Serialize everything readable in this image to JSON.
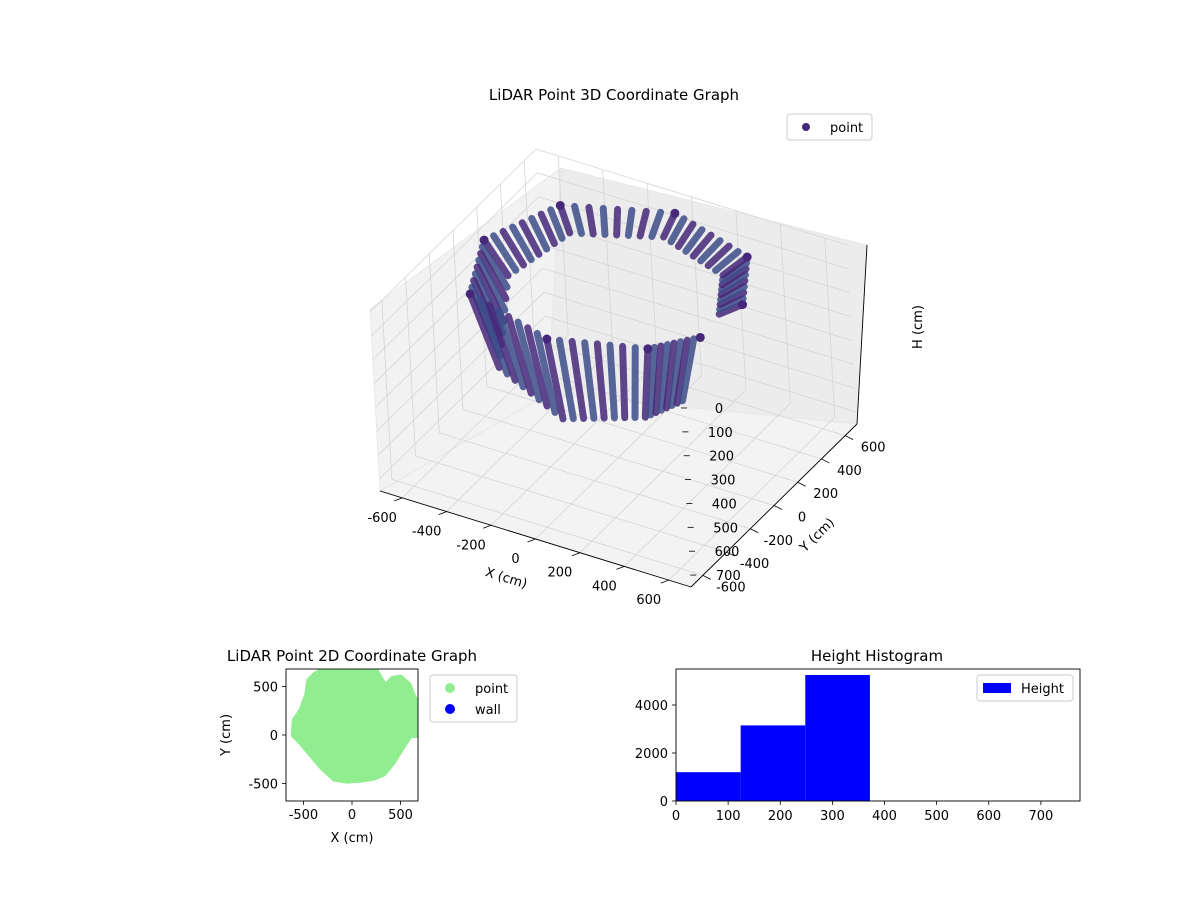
{
  "chart_data": [
    {
      "type": "scatter3d",
      "title": "LiDAR Point 3D Coordinate Graph",
      "xlabel": "X (cm)",
      "ylabel": "Y (cm)",
      "zlabel": "H (cm)",
      "xlim": [
        -700,
        700
      ],
      "ylim": [
        -700,
        700
      ],
      "zlim": [
        0,
        750
      ],
      "z_inverted": true,
      "xticks": [
        -600,
        -400,
        -200,
        0,
        200,
        400,
        600
      ],
      "yticks": [
        -600,
        -400,
        -200,
        0,
        200,
        400,
        600
      ],
      "zticks": [
        0,
        100,
        200,
        300,
        400,
        500,
        600,
        700
      ],
      "legend": {
        "position": "top-right",
        "entries": [
          {
            "label": "point",
            "color": "#46287a"
          }
        ]
      },
      "colormap": [
        "#46287a",
        "#3d4d8a"
      ],
      "grid": true,
      "series": [
        {
          "name": "point",
          "shape": "ring-sweep",
          "ring_radius_range": [
            380,
            560
          ],
          "angle_range_deg": [
            0,
            360
          ],
          "height_range": [
            0,
            420
          ],
          "points": [
            {
              "x": 550,
              "y": 100,
              "h": 60
            },
            {
              "x": 400,
              "y": 420,
              "h": 60
            },
            {
              "x": 0,
              "y": 560,
              "h": 50
            },
            {
              "x": -420,
              "y": 380,
              "h": 60
            },
            {
              "x": -560,
              "y": 0,
              "h": 120
            },
            {
              "x": -420,
              "y": -380,
              "h": 320
            },
            {
              "x": 0,
              "y": -520,
              "h": 380
            },
            {
              "x": 380,
              "y": -380,
              "h": 340
            },
            {
              "x": 520,
              "y": -200,
              "h": 300
            }
          ]
        }
      ]
    },
    {
      "type": "scatter",
      "title": "LiDAR Point 2D Coordinate Graph",
      "xlabel": "X (cm)",
      "ylabel": "Y (cm)",
      "xlim": [
        -680,
        680
      ],
      "ylim": [
        -680,
        680
      ],
      "xticks": [
        -500,
        0,
        500
      ],
      "yticks": [
        -500,
        0,
        500
      ],
      "legend": {
        "position": "right",
        "entries": [
          {
            "label": "point",
            "color": "#90ee90"
          },
          {
            "label": "wall",
            "color": "#0000ff"
          }
        ]
      },
      "series": [
        {
          "name": "point",
          "color": "#90ee90",
          "outline": [
            [
              -600,
              0
            ],
            [
              -590,
              150
            ],
            [
              -520,
              250
            ],
            [
              -460,
              420
            ],
            [
              -440,
              560
            ],
            [
              -380,
              620
            ],
            [
              -280,
              680
            ],
            [
              -150,
              680
            ],
            [
              0,
              680
            ],
            [
              150,
              680
            ],
            [
              250,
              650
            ],
            [
              300,
              560
            ],
            [
              350,
              500
            ],
            [
              420,
              580
            ],
            [
              500,
              590
            ],
            [
              580,
              520
            ],
            [
              620,
              420
            ],
            [
              680,
              300
            ],
            [
              680,
              0
            ],
            [
              600,
              0
            ],
            [
              520,
              -120
            ],
            [
              420,
              -280
            ],
            [
              320,
              -400
            ],
            [
              220,
              -440
            ],
            [
              100,
              -460
            ],
            [
              -60,
              -470
            ],
            [
              -180,
              -450
            ],
            [
              -300,
              -340
            ],
            [
              -420,
              -200
            ],
            [
              -520,
              -80
            ]
          ]
        },
        {
          "name": "wall",
          "color": "#0000ff",
          "points": []
        }
      ]
    },
    {
      "type": "bar",
      "title": "Height Histogram",
      "xlim": [
        0,
        775
      ],
      "ylim": [
        0,
        5500
      ],
      "xticks": [
        0,
        100,
        200,
        300,
        400,
        500,
        600,
        700
      ],
      "yticks": [
        0,
        2000,
        4000
      ],
      "legend": {
        "position": "top-right",
        "entries": [
          {
            "label": "Height",
            "color": "#0000ff"
          }
        ]
      },
      "series": [
        {
          "name": "Height",
          "color": "#0000ff",
          "bins": [
            {
              "start": 0,
              "end": 124,
              "count": 1200
            },
            {
              "start": 124,
              "end": 248,
              "count": 3150
            },
            {
              "start": 248,
              "end": 372,
              "count": 5250
            }
          ]
        }
      ]
    }
  ]
}
